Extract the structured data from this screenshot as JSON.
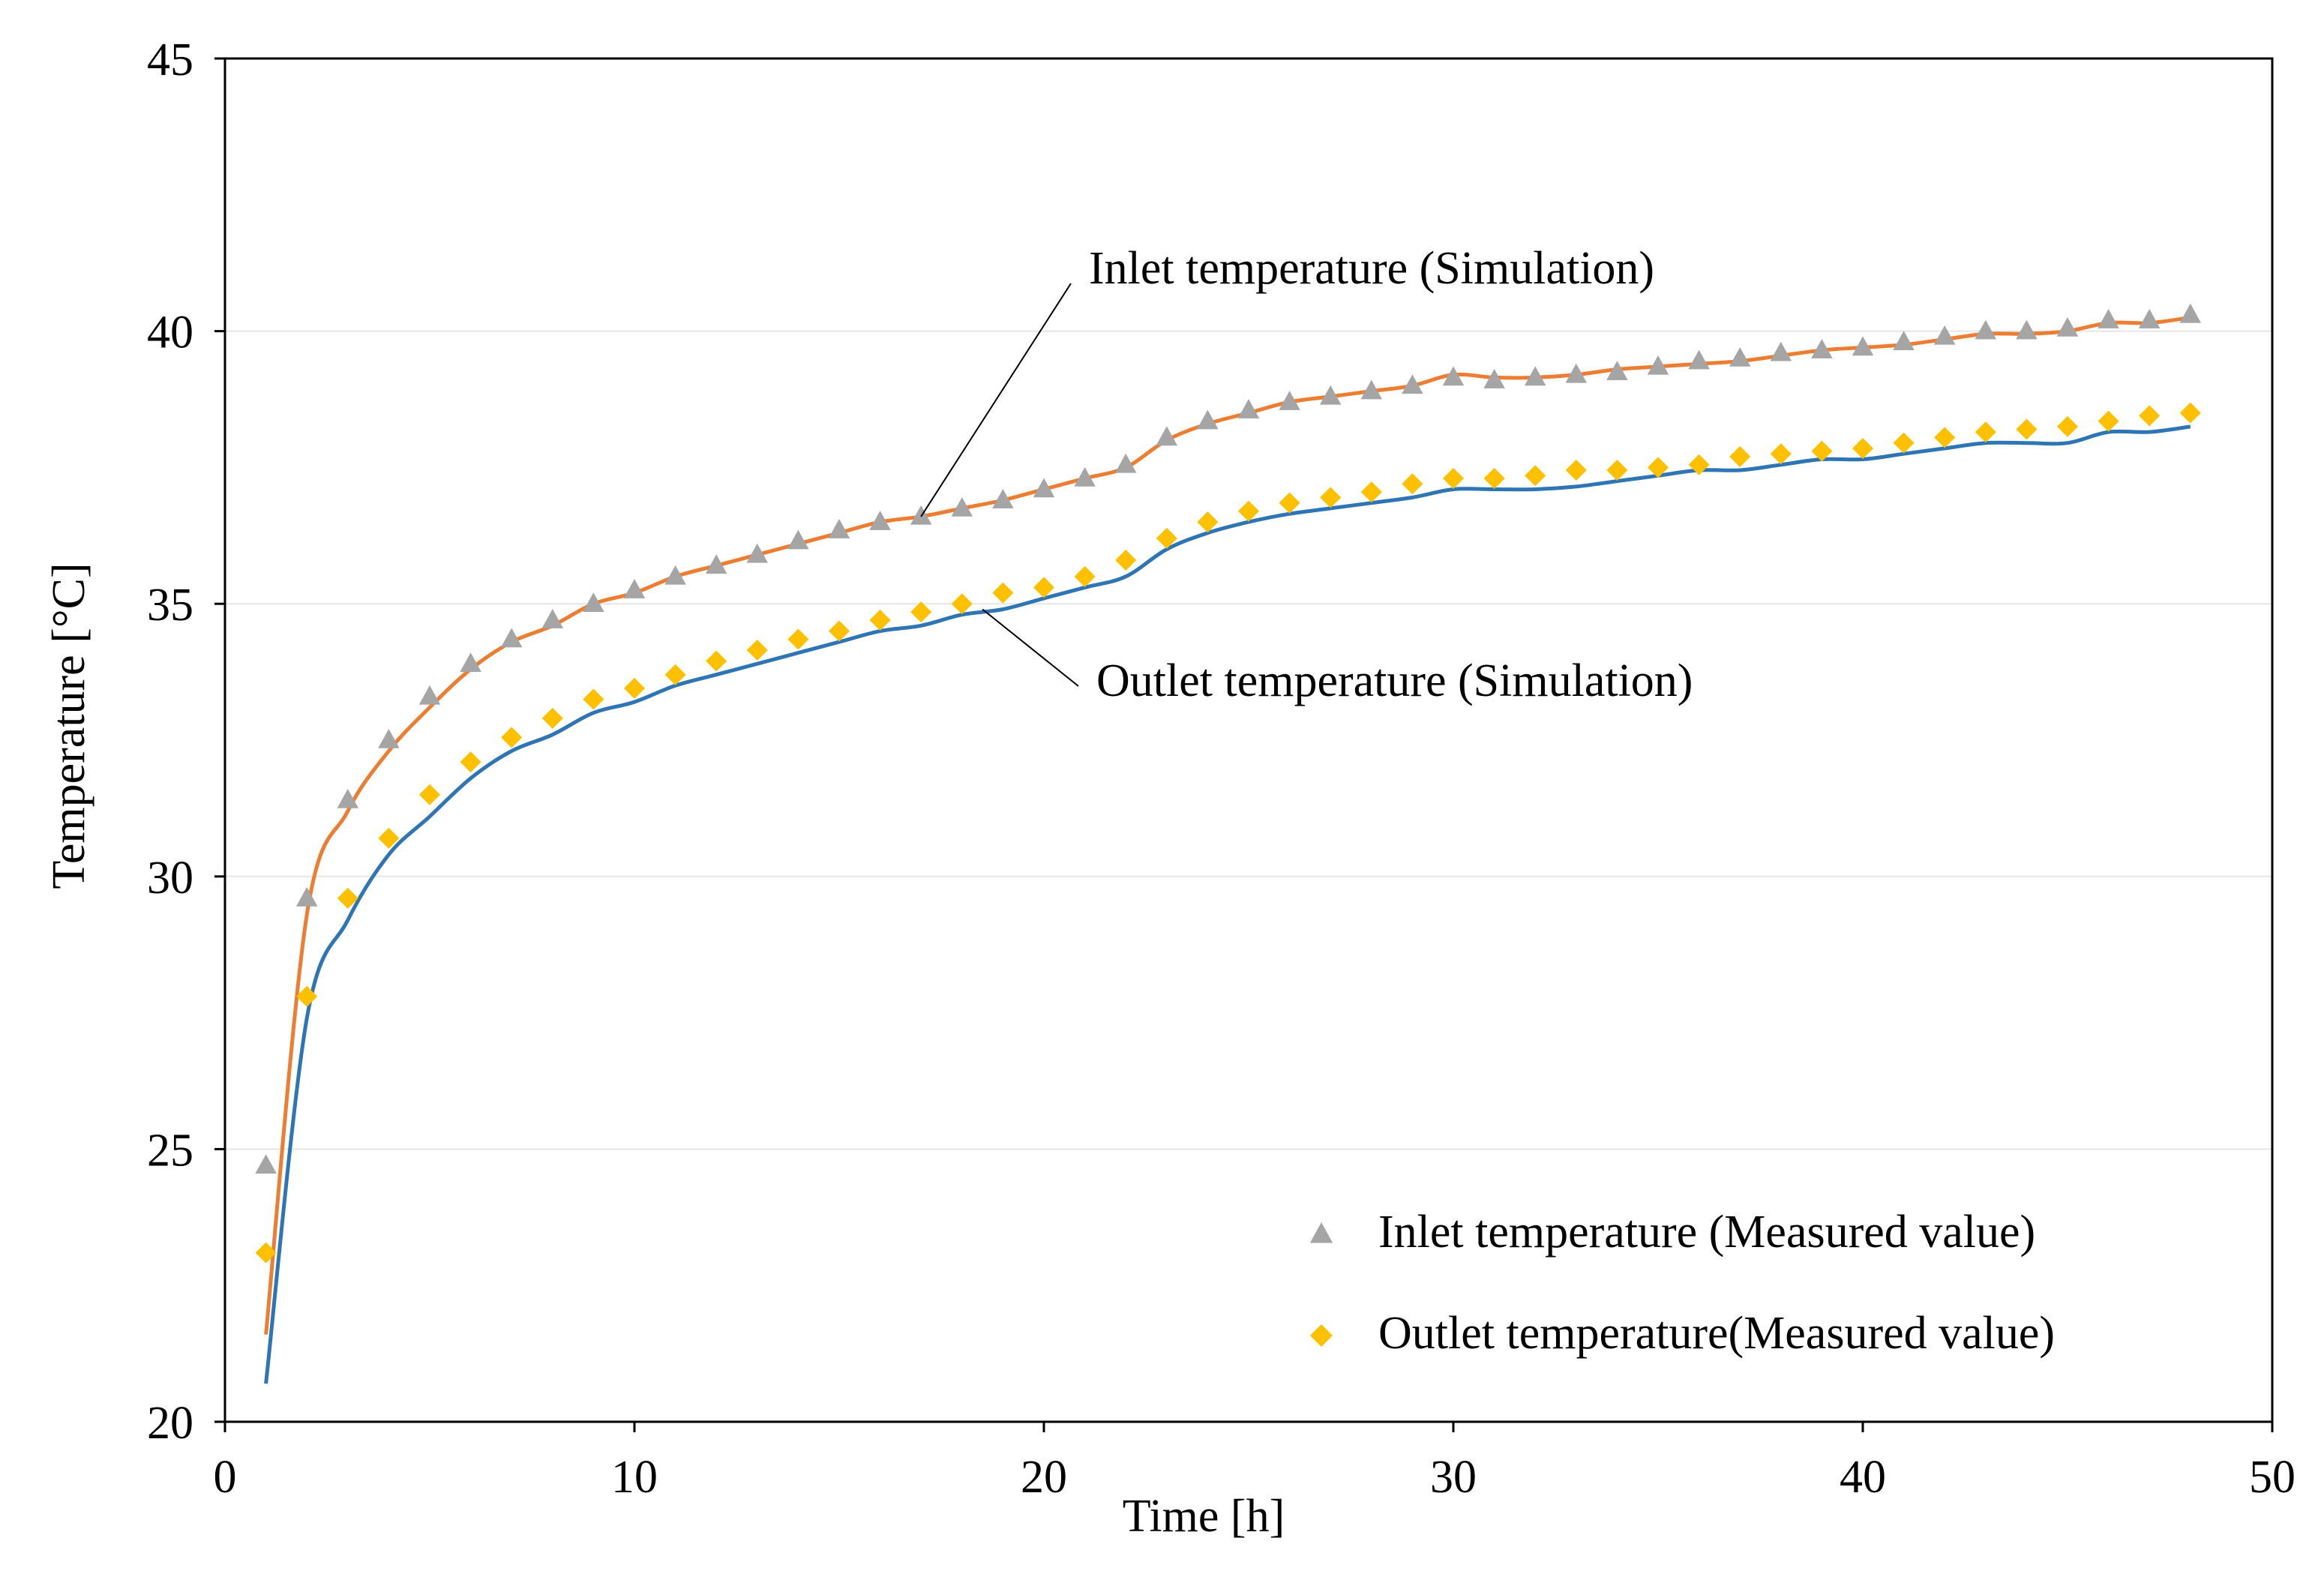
{
  "chart_data": {
    "type": "line",
    "title": "",
    "xlabel": "Time [h]",
    "ylabel": "Temperature  [°C]",
    "xlim": [
      0,
      50
    ],
    "ylim": [
      20,
      45
    ],
    "x_ticks": [
      "0",
      "10",
      "20",
      "30",
      "40",
      "50"
    ],
    "y_ticks": [
      "20",
      "25",
      "30",
      "35",
      "40",
      "45"
    ],
    "x_tick_values": [
      0,
      10,
      20,
      30,
      40,
      50
    ],
    "y_tick_values": [
      20,
      25,
      30,
      35,
      40,
      45
    ],
    "grid": "horizontal",
    "legend_position": "bottom-right",
    "colors": {
      "inlet_simulation": "#ED7D31",
      "outlet_simulation": "#2E75B6",
      "inlet_measured": "#A5A5A5",
      "outlet_measured": "#FFC000",
      "grid": "#E6E6E6",
      "axis": "#000000"
    },
    "annotations": [
      {
        "text": "Inlet temperature (Simulation)",
        "target_series": "inlet_simulation",
        "x": 17,
        "y": 36.6
      },
      {
        "text": "Outlet temperature (Simulation)",
        "target_series": "outlet_simulation",
        "x": 18.5,
        "y": 34.9
      }
    ],
    "x": [
      1,
      2,
      3,
      4,
      5,
      6,
      7,
      8,
      9,
      10,
      11,
      12,
      13,
      14,
      15,
      16,
      17,
      18,
      19,
      20,
      21,
      22,
      23,
      24,
      25,
      26,
      27,
      28,
      29,
      30,
      31,
      32,
      33,
      34,
      35,
      36,
      37,
      38,
      39,
      40,
      41,
      42,
      43,
      44,
      45,
      46,
      47,
      48
    ],
    "series": [
      {
        "id": "inlet_simulation",
        "name": "",
        "kind": "line",
        "values": [
          21.6,
          29.3,
          31.2,
          32.3,
          33.1,
          33.8,
          34.3,
          34.6,
          35.0,
          35.2,
          35.5,
          35.7,
          35.9,
          36.1,
          36.3,
          36.5,
          36.6,
          36.75,
          36.9,
          37.1,
          37.3,
          37.5,
          38.0,
          38.3,
          38.5,
          38.7,
          38.8,
          38.9,
          39.0,
          39.2,
          39.15,
          39.15,
          39.2,
          39.3,
          39.35,
          39.4,
          39.45,
          39.55,
          39.65,
          39.7,
          39.75,
          39.85,
          39.95,
          39.95,
          40.0,
          40.15,
          40.15,
          40.25
        ]
      },
      {
        "id": "outlet_simulation",
        "name": "",
        "kind": "line",
        "values": [
          20.7,
          27.4,
          29.2,
          30.4,
          31.1,
          31.8,
          32.3,
          32.6,
          33.0,
          33.2,
          33.5,
          33.7,
          33.9,
          34.1,
          34.3,
          34.5,
          34.6,
          34.8,
          34.9,
          35.1,
          35.3,
          35.5,
          36.0,
          36.3,
          36.5,
          36.65,
          36.75,
          36.85,
          36.95,
          37.1,
          37.1,
          37.1,
          37.15,
          37.25,
          37.35,
          37.45,
          37.45,
          37.55,
          37.65,
          37.65,
          37.75,
          37.85,
          37.95,
          37.95,
          37.95,
          38.15,
          38.15,
          38.25
        ]
      },
      {
        "id": "inlet_measured",
        "name": "Inlet temperature (Measured value)",
        "kind": "marker",
        "marker": "triangle",
        "values": [
          24.7,
          29.6,
          31.4,
          32.5,
          33.3,
          33.9,
          34.35,
          34.7,
          35.0,
          35.25,
          35.5,
          35.7,
          35.9,
          36.15,
          36.35,
          36.5,
          36.6,
          36.75,
          36.9,
          37.1,
          37.3,
          37.55,
          38.05,
          38.35,
          38.55,
          38.7,
          38.8,
          38.9,
          39.0,
          39.15,
          39.1,
          39.15,
          39.2,
          39.25,
          39.35,
          39.45,
          39.5,
          39.6,
          39.65,
          39.7,
          39.8,
          39.9,
          40.0,
          40.0,
          40.05,
          40.2,
          40.2,
          40.3
        ]
      },
      {
        "id": "outlet_measured",
        "name": "Outlet temperature(Measured value)",
        "kind": "marker",
        "marker": "diamond",
        "values": [
          23.1,
          27.8,
          29.6,
          30.7,
          31.5,
          32.1,
          32.55,
          32.9,
          33.25,
          33.45,
          33.7,
          33.95,
          34.15,
          34.35,
          34.5,
          34.7,
          34.85,
          35.0,
          35.2,
          35.3,
          35.5,
          35.8,
          36.2,
          36.5,
          36.7,
          36.85,
          36.95,
          37.05,
          37.2,
          37.3,
          37.3,
          37.35,
          37.45,
          37.45,
          37.5,
          37.55,
          37.7,
          37.75,
          37.8,
          37.85,
          37.95,
          38.05,
          38.15,
          38.2,
          38.25,
          38.35,
          38.45,
          38.5
        ]
      }
    ]
  }
}
